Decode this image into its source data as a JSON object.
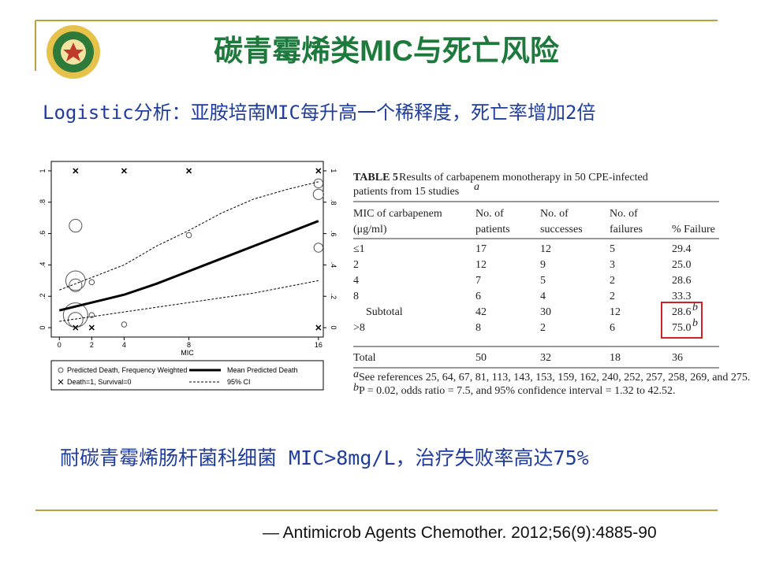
{
  "slide": {
    "title": "碳青霉烯类MIC与死亡风险",
    "subtitle": "Logistic分析：亚胺培南MIC每升高一个稀释度，死亡率增加2倍",
    "conclusion": "耐碳青霉烯肠杆菌科细菌 MIC>8mg/L，治疗失败率高达75%",
    "citation": "— Antimicrob Agents Chemother. 2012;56(9):4885-90"
  },
  "chart_data": {
    "type": "scatter",
    "xlabel": "MIC",
    "xlim": [
      -0.5,
      16.3
    ],
    "ylim": [
      -0.06,
      1.06
    ],
    "xticks": [
      0,
      2,
      4,
      8,
      16
    ],
    "yticks": [
      0,
      {
        "value": 0.2,
        "label": ".2"
      },
      {
        "value": 0.4,
        "label": ".4"
      },
      {
        "value": 0.6,
        "label": ".6"
      },
      {
        "value": 0.8,
        "label": ".8"
      },
      1
    ],
    "series": [
      {
        "name": "Predicted Death, Frequency Weighted",
        "marker": "circle",
        "color": "#555555",
        "x": [
          1,
          1,
          1,
          2,
          1,
          1,
          2,
          4,
          8,
          16,
          16,
          16
        ],
        "values": [
          0.65,
          0.3,
          0.27,
          0.29,
          0.08,
          0.05,
          0.08,
          0.02,
          0.59,
          0.92,
          0.85,
          0.51
        ],
        "sizes": [
          6,
          14,
          6,
          1,
          22,
          8,
          1,
          1,
          1,
          3,
          4,
          3
        ]
      },
      {
        "name": "Mean Predicted Death",
        "marker": "line",
        "color": "#000000",
        "x": [
          0,
          2,
          4,
          6,
          8,
          10,
          12,
          14,
          16
        ],
        "values": [
          0.11,
          0.16,
          0.21,
          0.28,
          0.36,
          0.44,
          0.52,
          0.6,
          0.68
        ]
      },
      {
        "name": "Death=1, Survival=0",
        "marker": "x",
        "color": "#000000",
        "x": [
          1,
          4,
          8,
          16,
          1,
          2,
          16
        ],
        "values": [
          1,
          1,
          1,
          1,
          0,
          0,
          0
        ]
      },
      {
        "name": "95% CI",
        "marker": "dashed",
        "color": "#000000",
        "x": [
          0,
          2,
          4,
          6,
          8,
          10,
          12,
          14,
          16
        ],
        "values": [
          0.24,
          0.32,
          0.4,
          0.52,
          0.62,
          0.73,
          0.82,
          0.88,
          0.93
        ],
        "lower_values": [
          0.04,
          0.07,
          0.1,
          0.13,
          0.16,
          0.19,
          0.22,
          0.26,
          0.3
        ]
      }
    ]
  },
  "table": {
    "caption_label": "TABLE 5",
    "caption": "Results of carbapenem monotherapy in 50 CPE-infected",
    "caption_2": "patients from 15 studies",
    "caption_note": "a",
    "header": [
      [
        "MIC of carbapenem",
        "(μg/ml)"
      ],
      [
        "No. of",
        "patients"
      ],
      [
        "No. of",
        "successes"
      ],
      [
        "No. of",
        "failures"
      ],
      [
        "",
        "% Failure"
      ]
    ],
    "rows": [
      {
        "cells": [
          "≤1",
          "17",
          "12",
          "5",
          "29.4"
        ]
      },
      {
        "cells": [
          "2",
          "12",
          "9",
          "3",
          "25.0"
        ]
      },
      {
        "cells": [
          "4",
          "7",
          "5",
          "2",
          "28.6"
        ]
      },
      {
        "cells": [
          "8",
          "6",
          "4",
          "2",
          "33.3"
        ]
      },
      {
        "cells": [
          "Subtotal",
          "42",
          "30",
          "12",
          "28.6"
        ],
        "note": "b"
      },
      {
        "cells": [
          ">8",
          "8",
          "2",
          "6",
          "75.0"
        ],
        "note": "b"
      },
      {
        "cells": [
          "Total",
          "50",
          "32",
          "18",
          "36"
        ]
      }
    ],
    "footnotes": [
      {
        "mark": "a",
        "text": "See references 25, 64, 67, 81, 113, 143, 153, 159, 162, 240, 252, 257, 258, 269, and 275."
      },
      {
        "mark": "b",
        "text": "P = 0.02, odds ratio = 7.5, and 95% confidence interval = 1.32 to 42.52."
      }
    ]
  }
}
